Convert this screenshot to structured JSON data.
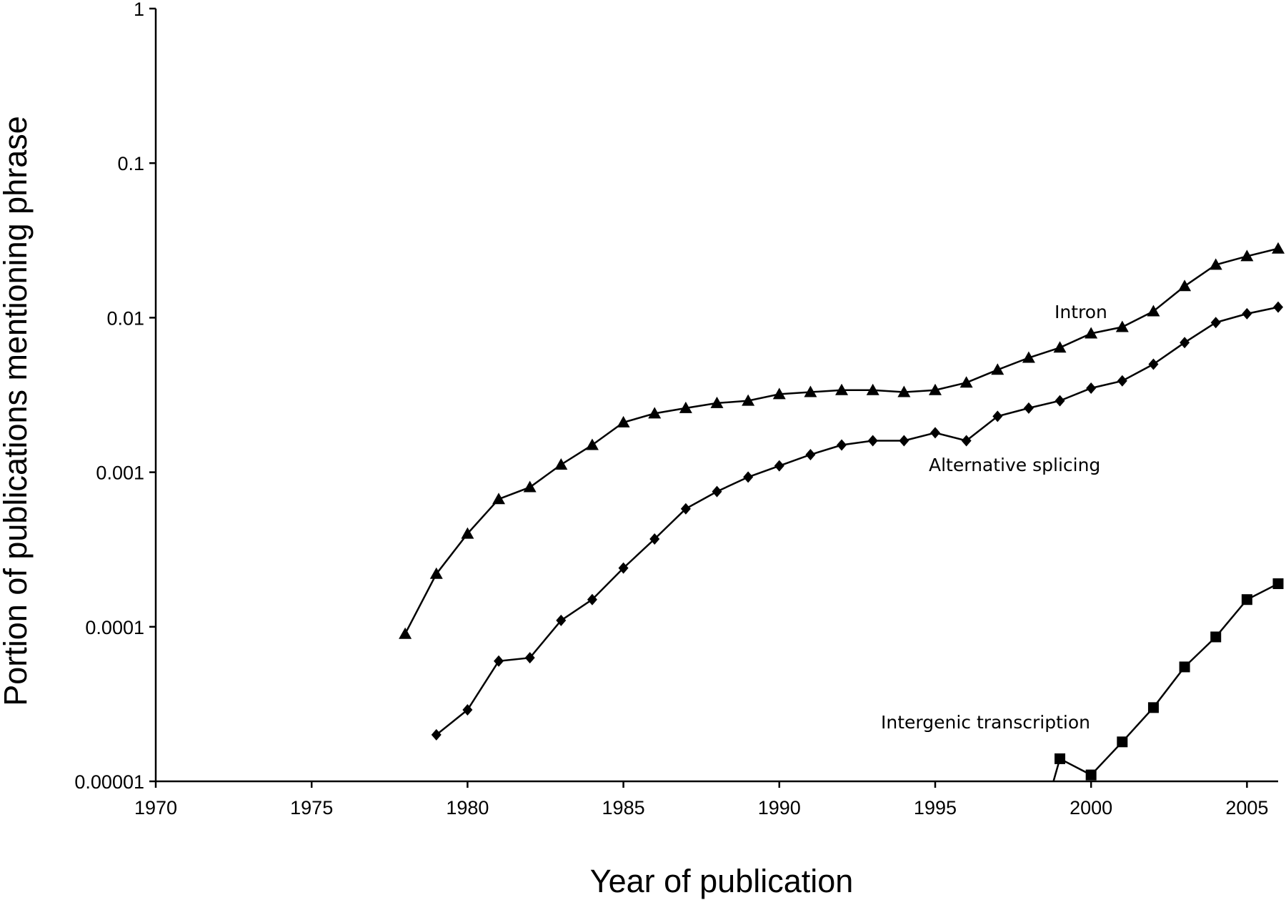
{
  "chart_data": {
    "type": "line",
    "title": "",
    "xlabel": "Year of publication",
    "ylabel": "Portion of publications mentioning phrase",
    "x_scale": "linear",
    "y_scale": "log",
    "xlim": [
      1970,
      2006
    ],
    "ylim": [
      1e-05,
      1
    ],
    "x_ticks": [
      1970,
      1975,
      1980,
      1985,
      1990,
      1995,
      2000,
      2005
    ],
    "x_tick_labels": [
      "1970",
      "1975",
      "1980",
      "1985",
      "1990",
      "1995",
      "2000",
      "2005"
    ],
    "y_ticks": [
      1e-05,
      0.0001,
      0.001,
      0.01,
      0.1,
      1
    ],
    "y_tick_labels": [
      "0.00001",
      "0.0001",
      "0.001",
      "0.01",
      "0.1",
      "1"
    ],
    "grid": false,
    "legend": "none",
    "annotations": [
      "Intron",
      "Alternative splicing",
      "Intergenic transcription"
    ],
    "series": [
      {
        "name": "Intron",
        "marker": "triangle",
        "x": [
          1978,
          1979,
          1980,
          1981,
          1982,
          1983,
          1984,
          1985,
          1986,
          1987,
          1988,
          1989,
          1990,
          1991,
          1992,
          1993,
          1994,
          1995,
          1996,
          1997,
          1998,
          1999,
          2000,
          2001,
          2002,
          2003,
          2004,
          2005,
          2006
        ],
        "y": [
          9e-05,
          0.00022,
          0.0004,
          0.00067,
          0.0008,
          0.00112,
          0.0015,
          0.0021,
          0.0024,
          0.0026,
          0.0028,
          0.0029,
          0.0032,
          0.0033,
          0.0034,
          0.0034,
          0.0033,
          0.0034,
          0.0038,
          0.0046,
          0.0055,
          0.0064,
          0.0079,
          0.0087,
          0.011,
          0.016,
          0.022,
          0.025,
          0.028
        ]
      },
      {
        "name": "Alternative splicing",
        "marker": "diamond",
        "x": [
          1979,
          1980,
          1981,
          1982,
          1983,
          1984,
          1985,
          1986,
          1987,
          1988,
          1989,
          1990,
          1991,
          1992,
          1993,
          1994,
          1995,
          1996,
          1997,
          1998,
          1999,
          2000,
          2001,
          2002,
          2003,
          2004,
          2005,
          2006
        ],
        "y": [
          2e-05,
          2.9e-05,
          6e-05,
          6.3e-05,
          0.00011,
          0.00015,
          0.00024,
          0.00037,
          0.00058,
          0.00075,
          0.00093,
          0.0011,
          0.0013,
          0.0015,
          0.0016,
          0.0016,
          0.0018,
          0.0016,
          0.0023,
          0.0026,
          0.0029,
          0.0035,
          0.0039,
          0.005,
          0.0069,
          0.0093,
          0.0106,
          0.0117
        ]
      },
      {
        "name": "Intergenic transcription",
        "marker": "square",
        "x": [
          1999,
          2000,
          2001,
          2002,
          2003,
          2004,
          2005,
          2006
        ],
        "y": [
          1.4e-05,
          1.1e-05,
          1.8e-05,
          3e-05,
          5.5e-05,
          8.6e-05,
          0.00015,
          0.00019
        ]
      }
    ]
  }
}
